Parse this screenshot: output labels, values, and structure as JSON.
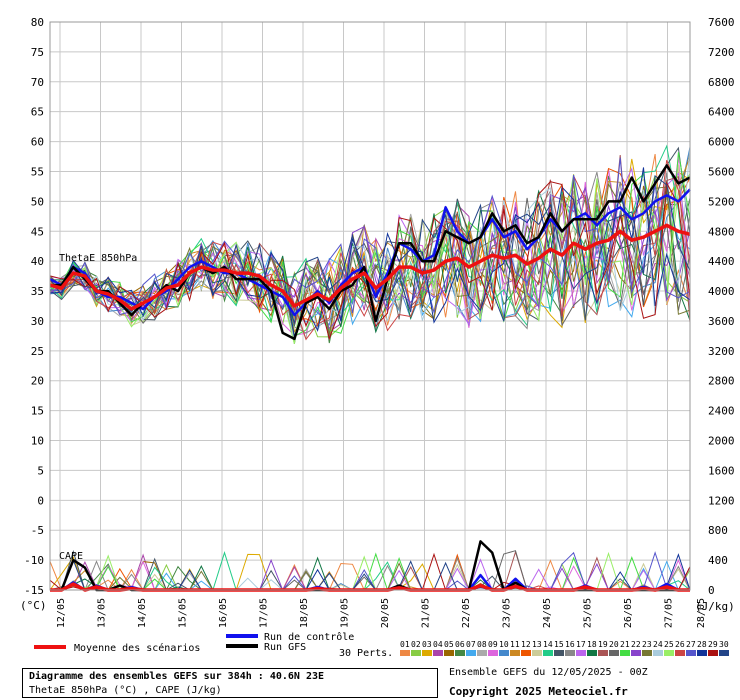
{
  "chart_data": {
    "type": "line",
    "left_axis": {
      "unit": "(°C)",
      "ticks": [
        "80",
        "75",
        "70",
        "65",
        "60",
        "55",
        "50",
        "45",
        "40",
        "35",
        "30",
        "25",
        "20",
        "15",
        "10",
        "5",
        "0",
        "-5",
        "-10",
        "-15"
      ],
      "ylim": [
        -15,
        80
      ]
    },
    "right_axis": {
      "unit": "(J/kg)",
      "ticks": [
        "7600",
        "7200",
        "6800",
        "6400",
        "6000",
        "5600",
        "5200",
        "4800",
        "4400",
        "4000",
        "3600",
        "3200",
        "2800",
        "2400",
        "2000",
        "1600",
        "1200",
        "800",
        "400",
        "0"
      ],
      "ylim": [
        0,
        7600
      ]
    },
    "x_ticks": [
      "12/05",
      "13/05",
      "14/05",
      "15/05",
      "16/05",
      "17/05",
      "18/05",
      "19/05",
      "20/05",
      "21/05",
      "22/05",
      "23/05",
      "24/05",
      "25/05",
      "26/05",
      "27/05",
      "28/05"
    ],
    "annotations": {
      "thetae": "ThetaE 850hPa",
      "cape": "CAPE"
    },
    "series": [
      {
        "name": "Moyenne des scénarios",
        "color": "#ee1111",
        "thetae": [
          36,
          35.5,
          38,
          37.5,
          35,
          34.5,
          33.5,
          32,
          33,
          34,
          35.5,
          36,
          38,
          39,
          38.5,
          38.5,
          38,
          38,
          37.5,
          36,
          35,
          32.5,
          33.5,
          34.5,
          33.5,
          35.5,
          37,
          38,
          35.5,
          37,
          39,
          39,
          38,
          38.5,
          40,
          40.5,
          39,
          40,
          41,
          40.5,
          41,
          39.5,
          40.5,
          42,
          41,
          43,
          42,
          43,
          43.5,
          45,
          43.5,
          44,
          45,
          46,
          45,
          44.5
        ],
        "cape": [
          0,
          0,
          80,
          0,
          40,
          0,
          0,
          20,
          0,
          0,
          0,
          0,
          0,
          0,
          0,
          0,
          0,
          0,
          0,
          0,
          0,
          0,
          0,
          20,
          0,
          0,
          0,
          0,
          0,
          0,
          30,
          0,
          0,
          0,
          0,
          0,
          0,
          60,
          0,
          0,
          50,
          0,
          0,
          0,
          0,
          0,
          40,
          0,
          0,
          0,
          0,
          20,
          0,
          40,
          0,
          0
        ]
      },
      {
        "name": "Run de contrôle",
        "color": "#1111ee",
        "thetae": [
          37,
          36,
          39,
          38,
          35,
          34,
          34,
          33,
          32,
          34,
          35,
          37,
          39,
          40,
          39,
          38,
          38,
          37,
          36,
          35,
          34,
          31,
          33,
          35,
          33,
          36,
          38,
          39,
          34,
          38,
          43,
          42,
          40,
          41,
          49,
          45,
          43,
          44,
          47,
          44,
          45,
          42,
          44,
          47,
          45,
          47,
          48,
          46,
          48,
          49,
          47,
          48,
          50,
          51,
          50,
          52
        ],
        "cape": [
          0,
          0,
          100,
          0,
          60,
          0,
          0,
          40,
          0,
          0,
          0,
          0,
          0,
          0,
          0,
          0,
          0,
          0,
          0,
          0,
          0,
          0,
          0,
          40,
          0,
          0,
          0,
          0,
          0,
          0,
          60,
          0,
          0,
          0,
          0,
          0,
          0,
          200,
          0,
          0,
          150,
          0,
          0,
          0,
          0,
          0,
          60,
          0,
          0,
          0,
          0,
          40,
          0,
          80,
          0,
          0
        ]
      },
      {
        "name": "Run GFS",
        "color": "#000000",
        "thetae": [
          36,
          36,
          39,
          37,
          35,
          35,
          33,
          31,
          33,
          34,
          36,
          35,
          38,
          39,
          38,
          39,
          37,
          37,
          37,
          35,
          28,
          27,
          33,
          34,
          32,
          35,
          36,
          39,
          30,
          37,
          43,
          43,
          40,
          40,
          45,
          44,
          43,
          44,
          48,
          45,
          46,
          43,
          44,
          48,
          45,
          47,
          47,
          47,
          50,
          50,
          54,
          50,
          53,
          56,
          53,
          54
        ],
        "cape": [
          0,
          0,
          400,
          300,
          0,
          0,
          60,
          0,
          0,
          0,
          0,
          0,
          0,
          0,
          0,
          0,
          0,
          0,
          0,
          0,
          0,
          0,
          0,
          0,
          0,
          0,
          0,
          0,
          0,
          0,
          60,
          0,
          0,
          0,
          0,
          0,
          0,
          650,
          500,
          0,
          100,
          0,
          0,
          0,
          0,
          0,
          0,
          0,
          0,
          0,
          0,
          0,
          0,
          0,
          0,
          0
        ]
      }
    ],
    "members_label": "30 Perts.",
    "members": [
      "01",
      "02",
      "03",
      "04",
      "05",
      "06",
      "07",
      "08",
      "09",
      "10",
      "11",
      "12",
      "13",
      "14",
      "15",
      "16",
      "17",
      "18",
      "19",
      "20",
      "21",
      "22",
      "23",
      "24",
      "25",
      "26",
      "27",
      "28",
      "29",
      "30"
    ],
    "member_colors": [
      "#ee8844",
      "#88cc44",
      "#ddaa00",
      "#aa44aa",
      "#996600",
      "#448844",
      "#44aaee",
      "#aaaaaa",
      "#dd66dd",
      "#4488cc",
      "#cc8822",
      "#ee5500",
      "#cccc99",
      "#22cc88",
      "#445566",
      "#888888",
      "#bb66ee",
      "#117744",
      "#aa5555",
      "#666666",
      "#44dd44",
      "#8844cc",
      "#777733",
      "#aaccdd",
      "#99ee66",
      "#cc4444",
      "#5555cc",
      "#113399",
      "#aa1111",
      "#224488"
    ]
  },
  "legend": {
    "mean": "Moyenne des scénarios",
    "control": "Run de contrôle",
    "gfs": "Run GFS"
  },
  "info": {
    "title": "Diagramme des ensembles GEFS sur 384h : 40.6N 23E",
    "subtitle": "ThetaE 850hPa (°C) , CAPE (J/kg)",
    "run": "Ensemble GEFS du 12/05/2025 - 00Z",
    "copyright": "Copyright 2025 Meteociel.fr"
  }
}
